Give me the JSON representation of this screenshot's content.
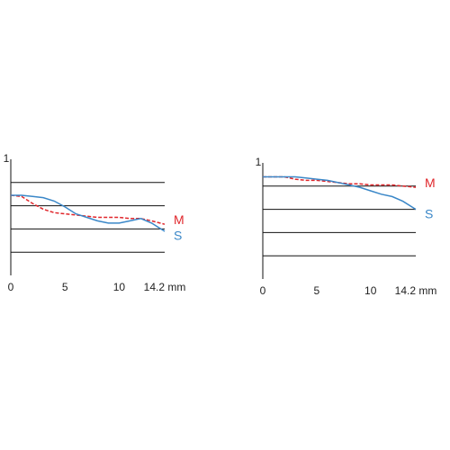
{
  "chart_data": [
    {
      "type": "line",
      "x": [
        0,
        1,
        2,
        3,
        4,
        5,
        6,
        7,
        8,
        9,
        10,
        11,
        12,
        13,
        14.2
      ],
      "xlim": [
        0,
        14.2
      ],
      "xticks": [
        0,
        5,
        10,
        {
          "value": 14.2,
          "label": "14.2 mm"
        }
      ],
      "ylim": [
        0,
        1
      ],
      "yticks": [
        1
      ],
      "gridlines": [
        0.2,
        0.4,
        0.6,
        0.8
      ],
      "series": [
        {
          "name": "M",
          "color": "#e0262b",
          "line_style": "dashed",
          "values": [
            0.69,
            0.68,
            0.62,
            0.57,
            0.54,
            0.53,
            0.52,
            0.51,
            0.5,
            0.5,
            0.5,
            0.49,
            0.49,
            0.47,
            0.44
          ]
        },
        {
          "name": "S",
          "color": "#3a87c8",
          "line_style": "solid",
          "values": [
            0.69,
            0.69,
            0.68,
            0.67,
            0.64,
            0.59,
            0.53,
            0.5,
            0.47,
            0.45,
            0.45,
            0.47,
            0.49,
            0.45,
            0.38
          ]
        }
      ]
    },
    {
      "type": "line",
      "x": [
        0,
        1,
        2,
        3,
        4,
        5,
        6,
        7,
        8,
        9,
        10,
        11,
        12,
        13,
        14.2
      ],
      "xlim": [
        0,
        14.2
      ],
      "xticks": [
        0,
        5,
        10,
        {
          "value": 14.2,
          "label": "14.2 mm"
        }
      ],
      "ylim": [
        0,
        1
      ],
      "yticks": [
        1
      ],
      "gridlines": [
        0.2,
        0.4,
        0.6,
        0.8
      ],
      "series": [
        {
          "name": "M",
          "color": "#e0262b",
          "line_style": "dashed",
          "values": [
            0.88,
            0.88,
            0.88,
            0.86,
            0.85,
            0.85,
            0.84,
            0.83,
            0.82,
            0.82,
            0.81,
            0.81,
            0.81,
            0.8,
            0.79
          ]
        },
        {
          "name": "S",
          "color": "#3a87c8",
          "line_style": "solid",
          "values": [
            0.88,
            0.88,
            0.88,
            0.88,
            0.87,
            0.86,
            0.85,
            0.83,
            0.81,
            0.79,
            0.76,
            0.73,
            0.71,
            0.67,
            0.6
          ]
        }
      ]
    }
  ]
}
